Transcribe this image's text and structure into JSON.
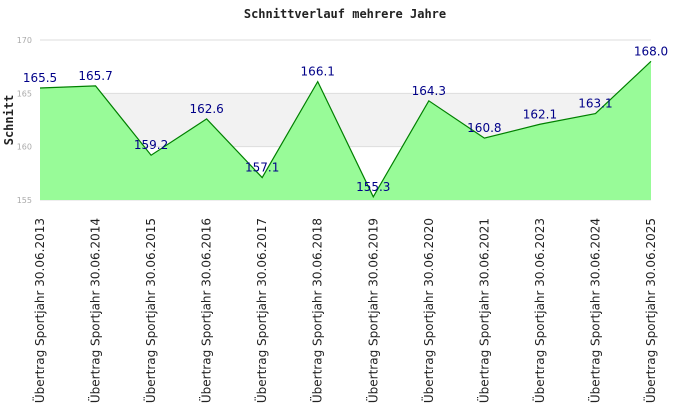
{
  "chart_data": {
    "type": "area",
    "title": "Schnittverlauf mehrere Jahre",
    "xlabel": "",
    "ylabel": "Schnitt",
    "ylim": [
      155,
      170
    ],
    "yticks": [
      "155",
      "160",
      "165",
      "170"
    ],
    "grid": true,
    "legend": "none",
    "categories": [
      "Übertrag Sportjahr 30.06.2013",
      "Übertrag Sportjahr 30.06.2014",
      "Übertrag Sportjahr 30.06.2015",
      "Übertrag Sportjahr 30.06.2016",
      "Übertrag Sportjahr 30.06.2017",
      "Übertrag Sportjahr 30.06.2018",
      "Übertrag Sportjahr 30.06.2019",
      "Übertrag Sportjahr 30.06.2020",
      "Übertrag Sportjahr 30.06.2021",
      "Übertrag Sportjahr 30.06.2023",
      "Übertrag Sportjahr 30.06.2024",
      "Übertrag Sportjahr 30.06.2025"
    ],
    "values": [
      165.5,
      165.7,
      159.2,
      162.6,
      157.1,
      166.1,
      155.3,
      164.3,
      160.8,
      162.1,
      163.1,
      168.0
    ],
    "data_labels": [
      "165.5",
      "165.7",
      "159.2",
      "162.6",
      "157.1",
      "166.1",
      "155.3",
      "164.3",
      "160.8",
      "162.1",
      "163.1",
      "168.0"
    ],
    "colors": {
      "fill": "#98fb98",
      "line": "#008000",
      "band": "#f2f2f2",
      "grid": "#dddddd",
      "label": "#000088"
    }
  }
}
